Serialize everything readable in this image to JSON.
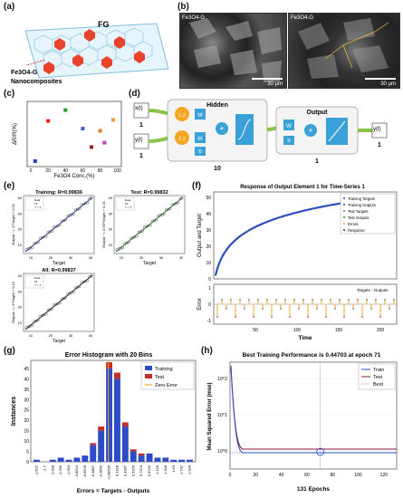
{
  "labels": {
    "a": "(a)",
    "b": "(b)",
    "c": "(c)",
    "d": "(d)",
    "e": "(e)",
    "f": "(f)",
    "g": "(g)",
    "h": "(h)"
  },
  "panel_a": {
    "fg": "FG",
    "fe": "Fe3O4-G",
    "nano": "Nanocomposites"
  },
  "panel_b": {
    "left_tag": "Fe3O4-G",
    "right_tag": "Fe3O4-G",
    "left_scale": "30 μm",
    "right_scale": "30 μm"
  },
  "panel_c": {
    "ylabel": "ΔR/R(%)",
    "xlabel": "Fe3O4 Conc.(%)",
    "xticks": [
      "0",
      "20",
      "40",
      "60",
      "80",
      "100"
    ],
    "points": [
      {
        "x": 5,
        "y": 0.05,
        "color": "#2040c0"
      },
      {
        "x": 20,
        "y": 0.42,
        "color": "#e02020"
      },
      {
        "x": 40,
        "y": 0.52,
        "color": "#20a020"
      },
      {
        "x": 60,
        "y": 0.35,
        "color": "#4060d0"
      },
      {
        "x": 80,
        "y": 0.33,
        "color": "#e08020"
      },
      {
        "x": 70,
        "y": 0.18,
        "color": "#a02020"
      },
      {
        "x": 85,
        "y": 0.22,
        "color": "#c040c0"
      },
      {
        "x": 95,
        "y": 0.43,
        "color": "#e0a030"
      }
    ]
  },
  "panel_d": {
    "hidden": "Hidden",
    "output": "Output",
    "x": "x(t)",
    "y_in": "y(t)",
    "y_out": "y(t)",
    "x_n": "1",
    "y_n": "1",
    "delay": "1:2",
    "delay2": "1:2",
    "w": "W",
    "b": "b",
    "hidden_n": "10",
    "out_n": "1",
    "out_y_n": "1"
  },
  "panel_e": {
    "training_title": "Training: R=0.99836",
    "test_title": "Test: R=0.99832",
    "all_title": "All: R=0.99837",
    "ylabel_train": "Output ~= 1*Target + 0.11",
    "ylabel_test": "Output ~= 0.99*Target + 0.21",
    "ylabel_all": "Output ~= 1*Target + 0.12",
    "xlabel": "Target",
    "legend": [
      "Data",
      "Fit",
      "Y = T"
    ],
    "ticks": [
      "10",
      "20",
      "30",
      "40"
    ]
  },
  "panel_f": {
    "title": "Response of Output Element 1 for Time-Series 1",
    "ylabel_top": "Output and Target",
    "ylabel_bottom": "Error",
    "xlabel": "Time",
    "legend": [
      "Training Targets",
      "Training Outputs",
      "Test Targets",
      "Test Outputs",
      "Errors",
      "Response"
    ],
    "err_legend": "Targets - Outputs",
    "yticks_top": [
      "0",
      "10",
      "20",
      "30",
      "40",
      "50"
    ],
    "xticks": [
      "50",
      "100",
      "150",
      "200"
    ],
    "yticks_bottom": [
      "-1",
      "0",
      "1"
    ]
  },
  "panel_g": {
    "title": "Error Histogram with 20 Bins",
    "ylabel": "Instances",
    "xlabel": "Errors = Targets - Outputs",
    "legend": [
      "Training",
      "Test",
      "Zero Error"
    ],
    "yticks": [
      "0",
      "5",
      "10",
      "15",
      "20",
      "25",
      "30",
      "35",
      "40",
      "45"
    ],
    "chart_data": {
      "type": "bar",
      "categories": [
        "-1.902",
        "-1.7",
        "-1.498",
        "-1.296",
        "-1.094",
        "-0.8924",
        "-0.6906",
        "-0.4887",
        "-0.2869",
        "-0.08506",
        "0.1168",
        "0.3187",
        "0.5205",
        "0.7224",
        "0.9243",
        "1.126",
        "1.328",
        "1.53",
        "1.732",
        "1.934"
      ],
      "series": [
        {
          "name": "Training",
          "values": [
            1,
            0,
            1,
            2,
            1,
            2,
            3,
            8,
            15,
            45,
            40,
            17,
            5,
            3,
            4,
            2,
            2,
            1,
            1,
            1
          ]
        },
        {
          "name": "Test",
          "values": [
            0,
            0,
            0,
            0,
            0,
            0,
            0,
            1,
            2,
            3,
            3,
            2,
            1,
            1,
            0,
            0,
            0,
            0,
            0,
            0
          ]
        }
      ],
      "ylim": [
        0,
        48
      ]
    }
  },
  "panel_h": {
    "title": "Best Training Performance is 0.44703 at epoch 71",
    "ylabel": "Mean Squared Error  (mse)",
    "xlabel": "131 Epochs",
    "legend": [
      "Train",
      "Test",
      "Best"
    ],
    "xticks": [
      "0",
      "20",
      "40",
      "60",
      "80",
      "100",
      "120"
    ],
    "yticks": [
      "10^0",
      "10^1",
      "10^2"
    ]
  }
}
